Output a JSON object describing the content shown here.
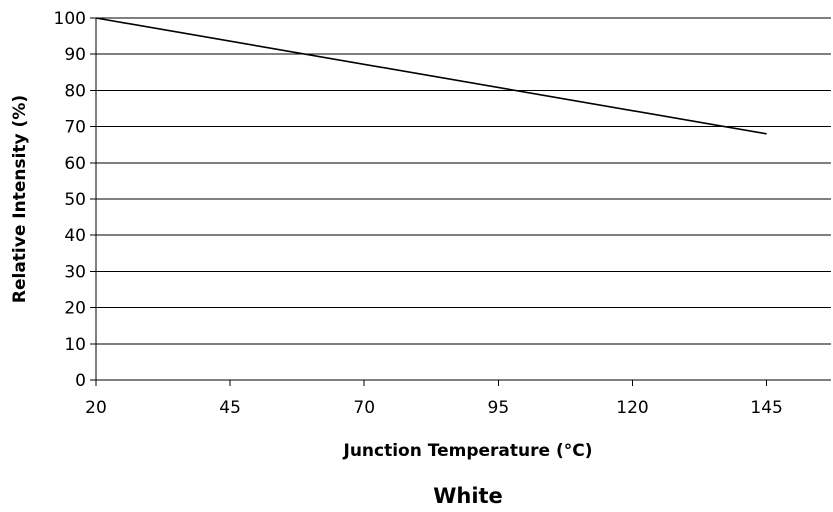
{
  "chart_data": {
    "type": "line",
    "title": "",
    "caption": "White",
    "xlabel": "Junction Temperature (°C)",
    "ylabel": "Relative Intensity (%)",
    "xlim": [
      20,
      157
    ],
    "ylim": [
      0,
      100
    ],
    "xticks": [
      20,
      45,
      70,
      95,
      120,
      145
    ],
    "yticks": [
      0,
      10,
      20,
      30,
      40,
      50,
      60,
      70,
      80,
      90,
      100
    ],
    "grid": "horizontal",
    "series": [
      {
        "x": [
          20,
          145
        ],
        "y": [
          100,
          68
        ],
        "color": "#000000"
      }
    ]
  }
}
